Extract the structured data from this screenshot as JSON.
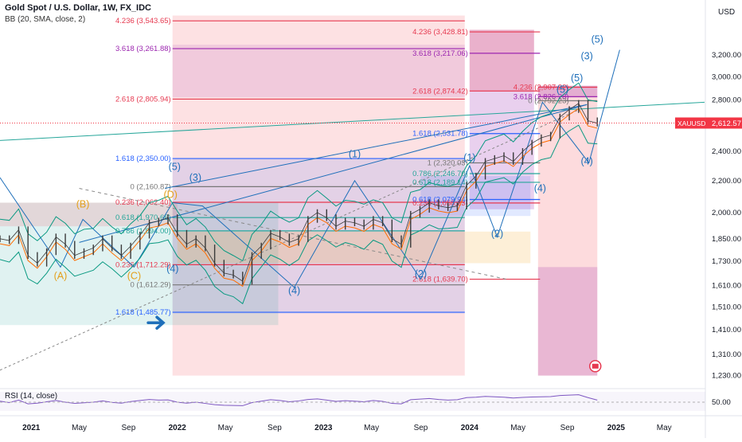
{
  "header": {
    "title": "Gold Spot / U.S. Dollar, 1W, FX_IDC",
    "indicator": "BB (20, SMA, close, 2)"
  },
  "currency_label": "USD",
  "symbol_tag": {
    "text": "XAUUSD",
    "price": "2,612.57",
    "color": "#f23645"
  },
  "rsi_panel": {
    "label": "RSI (14, close)",
    "level_label": "50.00"
  },
  "colors": {
    "fib_red": "#e63950",
    "fib_purple": "#9c27b0",
    "fib_blue": "#2962ff",
    "fib_green": "#26a69a",
    "fib_orange": "#f5a623",
    "wave_blue": "#1e6fba",
    "wave_orange": "#e3a01b",
    "price_line": "#3a3a3a"
  },
  "chart_data": {
    "type": "line",
    "title": "Gold Spot / U.S. Dollar, 1W, FX_IDC",
    "scale": "log",
    "x_ticks": [
      "2021",
      "May",
      "Sep",
      "2022",
      "May",
      "Sep",
      "2023",
      "May",
      "Sep",
      "2024",
      "May",
      "Sep",
      "2025",
      "May"
    ],
    "y_ticks": [
      "3,200.00",
      "3,000.00",
      "2,800.00",
      "2,600.00",
      "2,400.00",
      "2,200.00",
      "2,000.00",
      "1,850.00",
      "1,730.00",
      "1,610.00",
      "1,510.00",
      "1,410.00",
      "1,310.00",
      "1,230.00"
    ],
    "ylim": [
      1200,
      3700
    ],
    "last_price": "2,612.57",
    "series": [
      {
        "values": [
          1850,
          1840,
          1900,
          1760,
          1720,
          1780,
          1860,
          1820,
          1760,
          1780,
          1800,
          1850,
          1800,
          1760,
          1810,
          1870,
          1940,
          1950,
          1970,
          1880,
          1820,
          1850,
          1800,
          1720,
          1670,
          1660,
          1630,
          1760,
          1810,
          1880,
          1860,
          1830,
          1850,
          1960,
          2000,
          1970,
          1920,
          1950,
          1940,
          1920,
          1960,
          1940,
          1850,
          1820,
          1990,
          2020,
          2060,
          2040,
          2030,
          2040,
          2170,
          2230,
          2330,
          2350,
          2370,
          2330,
          2400,
          2460,
          2500,
          2520,
          2660,
          2720,
          2770,
          2630,
          2612
        ]
      }
    ]
  },
  "fib_left": [
    {
      "label": "4.236 (3,543.65)",
      "price": 3543.65,
      "color": "#e63950"
    },
    {
      "label": "3.618 (3,261.88)",
      "price": 3261.88,
      "color": "#9c27b0"
    },
    {
      "label": "2.618 (2,805.94)",
      "price": 2805.94,
      "color": "#e63950"
    },
    {
      "label": "1.618 (2,350.00)",
      "price": 2350.0,
      "color": "#2962ff"
    },
    {
      "label": "0 (2,160.87)",
      "price": 2160.87,
      "color": "#777777"
    },
    {
      "label": "0.236 (2,062.40)",
      "price": 2062.4,
      "color": "#e63950"
    },
    {
      "label": "0.618 (1,970.66)",
      "price": 1970.66,
      "color": "#26a69a"
    },
    {
      "label": "0.786 (1,894.00)",
      "price": 1894.0,
      "color": "#26a69a"
    },
    {
      "label": "0.236 (1,712.29)",
      "price": 1712.29,
      "color": "#e63950"
    },
    {
      "label": "0 (1,612.29)",
      "price": 1612.29,
      "color": "#777777"
    },
    {
      "label": "1.618 (1,485.77)",
      "price": 1485.77,
      "color": "#2962ff"
    }
  ],
  "fib_mid": [
    {
      "label": "4.236 (3,428.81)",
      "price": 3428.81,
      "color": "#e63950"
    },
    {
      "label": "3.618 (3,217.06)",
      "price": 3217.06,
      "color": "#9c27b0"
    },
    {
      "label": "2.618 (2,874.42)",
      "price": 2874.42,
      "color": "#e63950"
    },
    {
      "label": "1.618 (2,531.78)",
      "price": 2531.78,
      "color": "#2962ff"
    },
    {
      "label": "1 (2,320.03)",
      "price": 2320.03,
      "color": "#777777"
    },
    {
      "label": "0.786 (2,246.70)",
      "price": 2246.7,
      "color": "#26a69a"
    },
    {
      "label": "0.618 (2,189.14)",
      "price": 2189.14,
      "color": "#26a69a"
    },
    {
      "label": "0.236 (2,058.23)",
      "price": 2058.23,
      "color": "#e63950"
    },
    {
      "label": "0.618 (2,079.94)",
      "price": 2079.94,
      "color": "#2962ff"
    },
    {
      "label": "2.618 (1,639.70)",
      "price": 1639.7,
      "color": "#e63950"
    }
  ],
  "fib_right": [
    {
      "label": "4.236 (2,907.22)",
      "price": 2907.22,
      "color": "#e63950"
    },
    {
      "label": "3.618 (2,826.28)",
      "price": 2826.28,
      "color": "#9c27b0"
    },
    {
      "label": "0 (2,792.23)",
      "price": 2792.23,
      "color": "#777777"
    }
  ],
  "waves_blue": [
    {
      "label": "(5)",
      "date": "2024-11-15",
      "price": 3320
    },
    {
      "label": "(3)",
      "date": "2024-10-20",
      "price": 3160
    },
    {
      "label": "(5)",
      "date": "2024-09-25",
      "price": 2960
    },
    {
      "label": "(5)",
      "date": "2024-08-20",
      "price": 2860
    },
    {
      "label": "(4)",
      "date": "2024-10-20",
      "price": 2310
    },
    {
      "label": "(4)",
      "date": "2024-06-25",
      "price": 2130
    },
    {
      "label": "(2)",
      "date": "2024-03-10",
      "price": 1860
    },
    {
      "label": "(2)",
      "date": "2023-09-01",
      "price": 1650
    },
    {
      "label": "(1)",
      "date": "2023-03-20",
      "price": 2360
    },
    {
      "label": "(1)",
      "date": "2024-01-01",
      "price": 2335
    },
    {
      "label": "(3)",
      "date": "2022-02-15",
      "price": 2200
    },
    {
      "label": "(5)",
      "date": "2021-12-25",
      "price": 2270
    },
    {
      "label": "(4)",
      "date": "2021-12-20",
      "price": 1675
    },
    {
      "label": "(4)",
      "date": "2022-10-20",
      "price": 1570
    }
  ],
  "waves_orange": [
    {
      "label": "(B)",
      "date": "2021-05-10",
      "price": 2030
    },
    {
      "label": "(A)",
      "date": "2021-03-15",
      "price": 1640
    },
    {
      "label": "(C)",
      "date": "2021-09-15",
      "price": 1640
    },
    {
      "label": "(D)",
      "date": "2021-12-15",
      "price": 2090
    }
  ],
  "rsi_values": [
    55,
    48,
    60,
    42,
    45,
    52,
    58,
    50,
    44,
    47,
    50,
    56,
    49,
    45,
    53,
    58,
    63,
    60,
    61,
    50,
    45,
    50,
    44,
    38,
    35,
    34,
    33,
    48,
    55,
    62,
    58,
    52,
    56,
    63,
    66,
    60,
    54,
    57,
    55,
    52,
    58,
    54,
    44,
    42,
    62,
    65,
    68,
    63,
    60,
    62,
    72,
    74,
    78,
    76,
    74,
    70,
    73,
    75,
    76,
    77,
    82,
    84,
    86,
    72,
    60
  ]
}
